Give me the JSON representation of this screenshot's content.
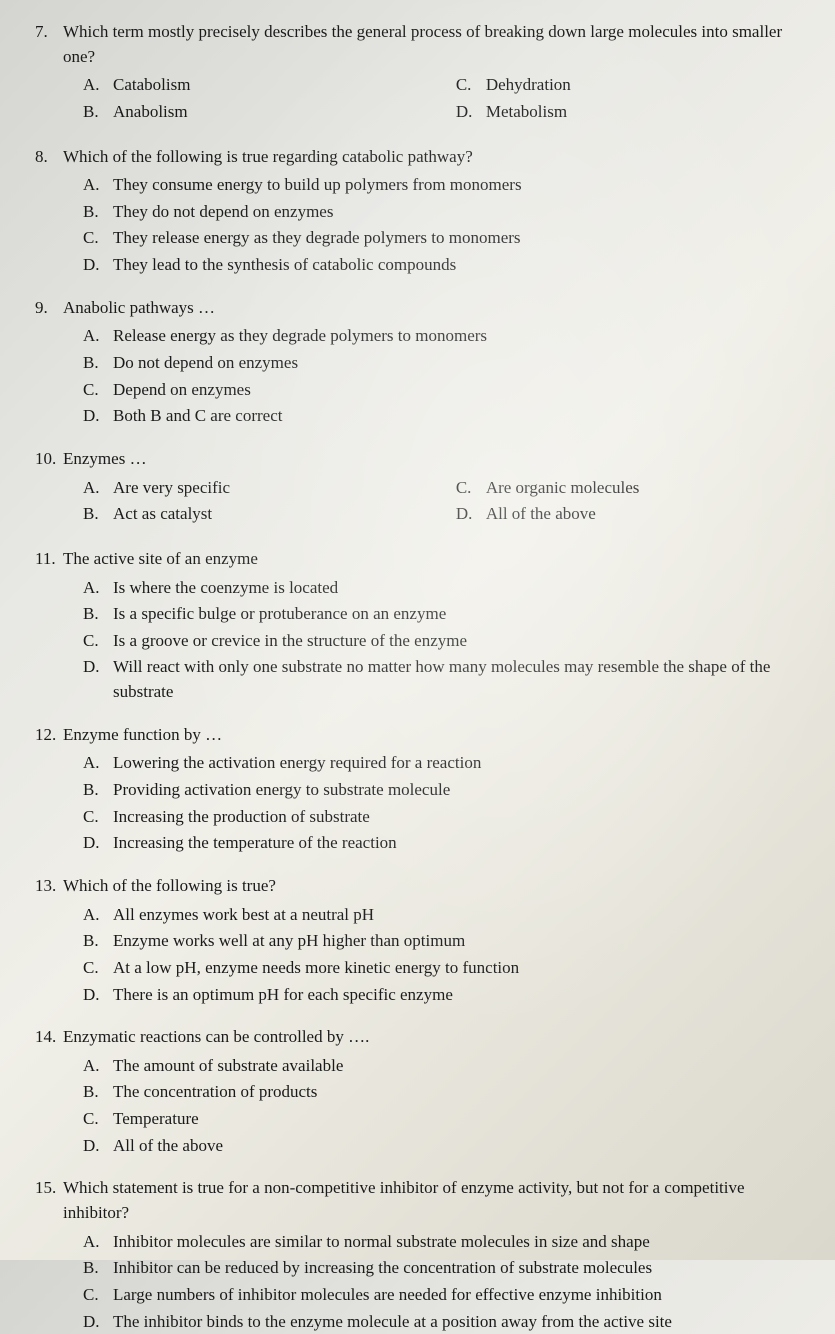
{
  "questions": [
    {
      "num": "7.",
      "stem": "Which term mostly precisely describes the general process of breaking down large molecules into smaller one?",
      "layout": "two-col",
      "left": [
        {
          "letter": "A.",
          "text": "Catabolism"
        },
        {
          "letter": "B.",
          "text": "Anabolism"
        }
      ],
      "right": [
        {
          "letter": "C.",
          "text": "Dehydration"
        },
        {
          "letter": "D.",
          "text": "Metabolism"
        }
      ]
    },
    {
      "num": "8.",
      "stem": "Which of the following is true regarding catabolic pathway?",
      "layout": "single",
      "options": [
        {
          "letter": "A.",
          "text": "They consume energy to build up polymers from monomers"
        },
        {
          "letter": "B.",
          "text": "They do not depend on enzymes"
        },
        {
          "letter": "C.",
          "text": "They release energy as they degrade polymers to monomers"
        },
        {
          "letter": "D.",
          "text": "They lead to the synthesis of catabolic compounds"
        }
      ]
    },
    {
      "num": "9.",
      "stem": "Anabolic pathways …",
      "layout": "single",
      "options": [
        {
          "letter": "A.",
          "text": "Release energy as they degrade polymers to monomers"
        },
        {
          "letter": "B.",
          "text": "Do not depend on enzymes"
        },
        {
          "letter": "C.",
          "text": "Depend on enzymes"
        },
        {
          "letter": "D.",
          "text": "Both B and C are correct"
        }
      ]
    },
    {
      "num": "10.",
      "stem": "Enzymes …",
      "layout": "two-col",
      "left": [
        {
          "letter": "A.",
          "text": "Are very specific"
        },
        {
          "letter": "B.",
          "text": "Act as catalyst"
        }
      ],
      "right": [
        {
          "letter": "C.",
          "text": "Are organic molecules"
        },
        {
          "letter": "D.",
          "text": "All of the above"
        }
      ]
    },
    {
      "num": "11.",
      "stem": "The active site of an enzyme",
      "layout": "single",
      "options": [
        {
          "letter": "A.",
          "text": "Is where the coenzyme is located"
        },
        {
          "letter": "B.",
          "text": "Is a specific bulge or protuberance on an enzyme"
        },
        {
          "letter": "C.",
          "text": "Is a groove or crevice in the structure of the enzyme"
        },
        {
          "letter": "D.",
          "text": "Will react with only one substrate no matter how many molecules may resemble the shape of the substrate"
        }
      ]
    },
    {
      "num": "12.",
      "stem": "Enzyme function by …",
      "layout": "single",
      "options": [
        {
          "letter": "A.",
          "text": "Lowering the activation energy required for a reaction"
        },
        {
          "letter": "B.",
          "text": "Providing activation energy to substrate molecule"
        },
        {
          "letter": "C.",
          "text": "Increasing the production of substrate"
        },
        {
          "letter": "D.",
          "text": "Increasing the temperature of the reaction"
        }
      ]
    },
    {
      "num": "13.",
      "stem": "Which of the following is true?",
      "layout": "single",
      "options": [
        {
          "letter": "A.",
          "text": "All enzymes work best at a neutral pH"
        },
        {
          "letter": "B.",
          "text": "Enzyme works well at any pH higher than optimum"
        },
        {
          "letter": "C.",
          "text": "At a low pH, enzyme needs more kinetic energy to function"
        },
        {
          "letter": "D.",
          "text": "There is an optimum pH for each specific enzyme"
        }
      ]
    },
    {
      "num": "14.",
      "stem": "Enzymatic reactions can be controlled by ….",
      "layout": "single",
      "options": [
        {
          "letter": "A.",
          "text": "The amount of substrate available"
        },
        {
          "letter": "B.",
          "text": "The concentration of products"
        },
        {
          "letter": "C.",
          "text": "Temperature"
        },
        {
          "letter": "D.",
          "text": "All of the above"
        }
      ]
    },
    {
      "num": "15.",
      "stem": "Which statement is true for a non-competitive inhibitor of enzyme activity, but not for a competitive inhibitor?",
      "layout": "single",
      "options": [
        {
          "letter": "A.",
          "text": "Inhibitor molecules are similar to normal substrate molecules in size and shape"
        },
        {
          "letter": "B.",
          "text": "Inhibitor can be reduced by increasing the concentration of substrate molecules"
        },
        {
          "letter": "C.",
          "text": "Large numbers of inhibitor molecules are needed for effective enzyme inhibition"
        },
        {
          "letter": "D.",
          "text": "The inhibitor binds to the enzyme molecule at a position away from the active site"
        }
      ]
    }
  ]
}
